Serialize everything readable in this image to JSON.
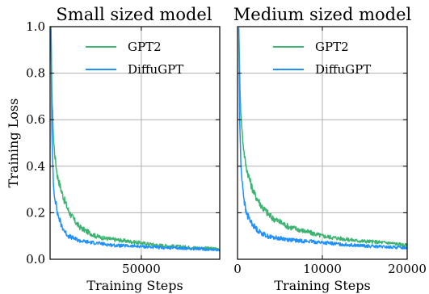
{
  "colors": {
    "gpt2": "#3cb371",
    "diffugpt": "#1e90ff"
  },
  "chart_data": [
    {
      "type": "line",
      "title": "Small sized model",
      "xlabel": "Training Steps",
      "ylabel": "Training Loss",
      "xlim": [
        0,
        93000
      ],
      "ylim": [
        0,
        1.0
      ],
      "xticks": [
        50000
      ],
      "xtick_labels": [
        "50000"
      ],
      "yticks": [
        0,
        0.2,
        0.4,
        0.6,
        0.8,
        1.0
      ],
      "ytick_labels": [
        "0.0",
        "0.2",
        "0.4",
        "0.6",
        "0.8",
        "1.0"
      ],
      "grid": true,
      "legend_position": "upper right",
      "series": [
        {
          "name": "GPT2",
          "x": [
            500,
            1000,
            2000,
            3000,
            4000,
            6000,
            8000,
            10000,
            13000,
            16000,
            20000,
            25000,
            30000,
            35000,
            40000,
            50000,
            60000,
            70000,
            80000,
            93000
          ],
          "values": [
            1.0,
            0.7,
            0.5,
            0.42,
            0.36,
            0.3,
            0.25,
            0.21,
            0.17,
            0.14,
            0.12,
            0.1,
            0.09,
            0.085,
            0.08,
            0.07,
            0.06,
            0.055,
            0.05,
            0.045
          ]
        },
        {
          "name": "DiffuGPT",
          "x": [
            500,
            1000,
            2000,
            3000,
            4000,
            6000,
            8000,
            10000,
            13000,
            16000,
            20000,
            25000,
            30000,
            35000,
            40000,
            50000,
            60000,
            70000,
            80000,
            93000
          ],
          "values": [
            1.0,
            0.5,
            0.3,
            0.25,
            0.2,
            0.15,
            0.12,
            0.1,
            0.09,
            0.08,
            0.075,
            0.07,
            0.065,
            0.06,
            0.058,
            0.055,
            0.05,
            0.048,
            0.045,
            0.04
          ]
        }
      ]
    },
    {
      "type": "line",
      "title": "Medium sized model",
      "xlabel": "Training Steps",
      "ylabel": "",
      "xlim": [
        0,
        20000
      ],
      "ylim": [
        0,
        1.0
      ],
      "xticks": [
        0,
        10000,
        20000
      ],
      "xtick_labels": [
        "0",
        "10000",
        "20000"
      ],
      "yticks": [
        0,
        0.2,
        0.4,
        0.6,
        0.8,
        1.0
      ],
      "ytick_labels": [],
      "grid": true,
      "legend_position": "upper right",
      "series": [
        {
          "name": "GPT2",
          "x": [
            150,
            250,
            400,
            600,
            800,
            1000,
            1300,
            1600,
            2000,
            2500,
            3000,
            3500,
            4000,
            5000,
            6000,
            7000,
            8000,
            10000,
            12000,
            14000,
            16000,
            18000,
            20000
          ],
          "values": [
            1.0,
            0.8,
            0.62,
            0.52,
            0.45,
            0.4,
            0.36,
            0.32,
            0.28,
            0.25,
            0.22,
            0.2,
            0.18,
            0.16,
            0.14,
            0.13,
            0.12,
            0.1,
            0.09,
            0.08,
            0.075,
            0.07,
            0.06
          ]
        },
        {
          "name": "DiffuGPT",
          "x": [
            150,
            250,
            400,
            600,
            800,
            1000,
            1300,
            1600,
            2000,
            2500,
            3000,
            3500,
            4000,
            5000,
            6000,
            7000,
            8000,
            10000,
            12000,
            14000,
            16000,
            18000,
            20000
          ],
          "values": [
            1.0,
            0.6,
            0.4,
            0.32,
            0.25,
            0.2,
            0.18,
            0.16,
            0.14,
            0.12,
            0.11,
            0.1,
            0.095,
            0.09,
            0.085,
            0.08,
            0.078,
            0.072,
            0.065,
            0.06,
            0.055,
            0.052,
            0.05
          ]
        }
      ]
    }
  ]
}
